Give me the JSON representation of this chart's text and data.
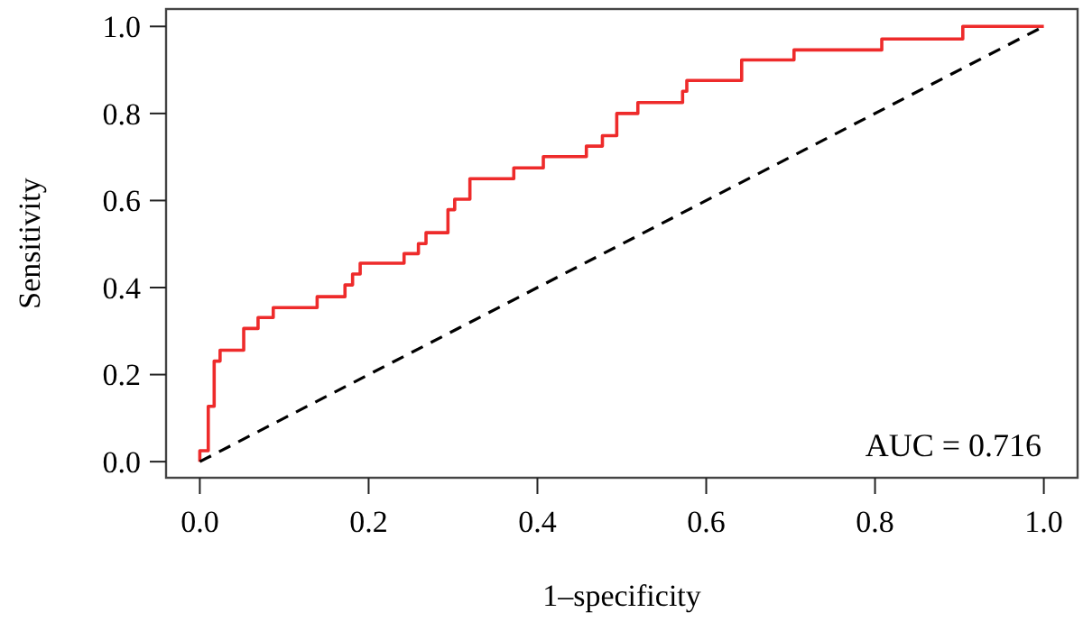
{
  "chart_data": {
    "type": "step",
    "xlabel": "1–specificity",
    "ylabel": "Sensitivity",
    "xlim": [
      -0.04,
      1.04
    ],
    "ylim": [
      -0.037,
      1.04
    ],
    "xticks": [
      {
        "value": 0,
        "label": "0.0"
      },
      0.2,
      0.4,
      0.6,
      0.8,
      {
        "value": 1,
        "label": "1.0"
      }
    ],
    "yticks": [
      {
        "value": 0,
        "label": "0.0"
      },
      0.2,
      0.4,
      0.6,
      0.8,
      {
        "value": 1,
        "label": "1.0"
      }
    ],
    "grid": false,
    "marker": "none",
    "series": [
      {
        "type": "step",
        "color": "#ee2b2b",
        "line_style": "solid",
        "x": [
          0,
          0,
          0.01,
          0.017,
          0.024,
          0.052,
          0.069,
          0.087,
          0.139,
          0.172,
          0.181,
          0.19,
          0.242,
          0.259,
          0.268,
          0.294,
          0.302,
          0.32,
          0.372,
          0.407,
          0.458,
          0.477,
          0.494,
          0.519,
          0.572,
          0.577,
          0.642,
          0.704,
          0.808,
          0.904,
          1.0
        ],
        "values": [
          0,
          0.025,
          0.127,
          0.231,
          0.256,
          0.306,
          0.331,
          0.354,
          0.379,
          0.406,
          0.431,
          0.456,
          0.478,
          0.501,
          0.526,
          0.579,
          0.603,
          0.65,
          0.675,
          0.701,
          0.725,
          0.749,
          0.8,
          0.825,
          0.851,
          0.876,
          0.923,
          0.946,
          0.971,
          1.0,
          1.0
        ]
      },
      {
        "type": "line",
        "color": "#000000",
        "line_style": "dashed",
        "x": [
          0,
          1
        ],
        "values": [
          0,
          1
        ]
      }
    ],
    "annotations": [
      "AUC = 0.716"
    ]
  }
}
